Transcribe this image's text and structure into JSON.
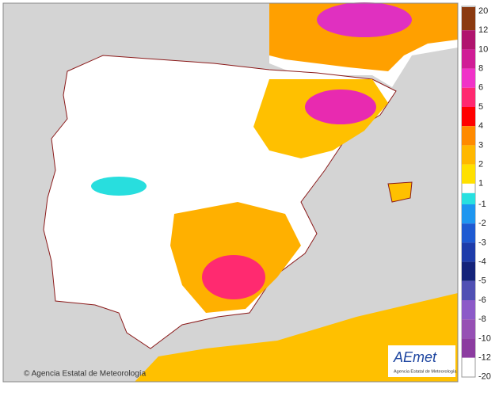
{
  "legend": {
    "labels": [
      20,
      12,
      10,
      8,
      6,
      5,
      4,
      3,
      2,
      1,
      -1,
      -2,
      -3,
      -4,
      -5,
      -6,
      -8,
      -10,
      -12,
      -20
    ],
    "warm_colors": [
      "#8b3a10",
      "#b0146e",
      "#d01c96",
      "#f032c8",
      "#ff2870",
      "#ff0000",
      "#ff8a00",
      "#ffb800",
      "#ffe000"
    ],
    "cold_colors": [
      "#28e0e0",
      "#1e96f0",
      "#1e5ad2",
      "#1e3caa",
      "#14237a",
      "#5050b4",
      "#8c5ac8",
      "#9650b4",
      "#8c3ca0"
    ]
  },
  "footer": {
    "credit": "© Agencia Estatal de Meteorología"
  },
  "logo": {
    "name": "AEmet",
    "subtitle": "Agencia Estatal de Meteorología"
  }
}
